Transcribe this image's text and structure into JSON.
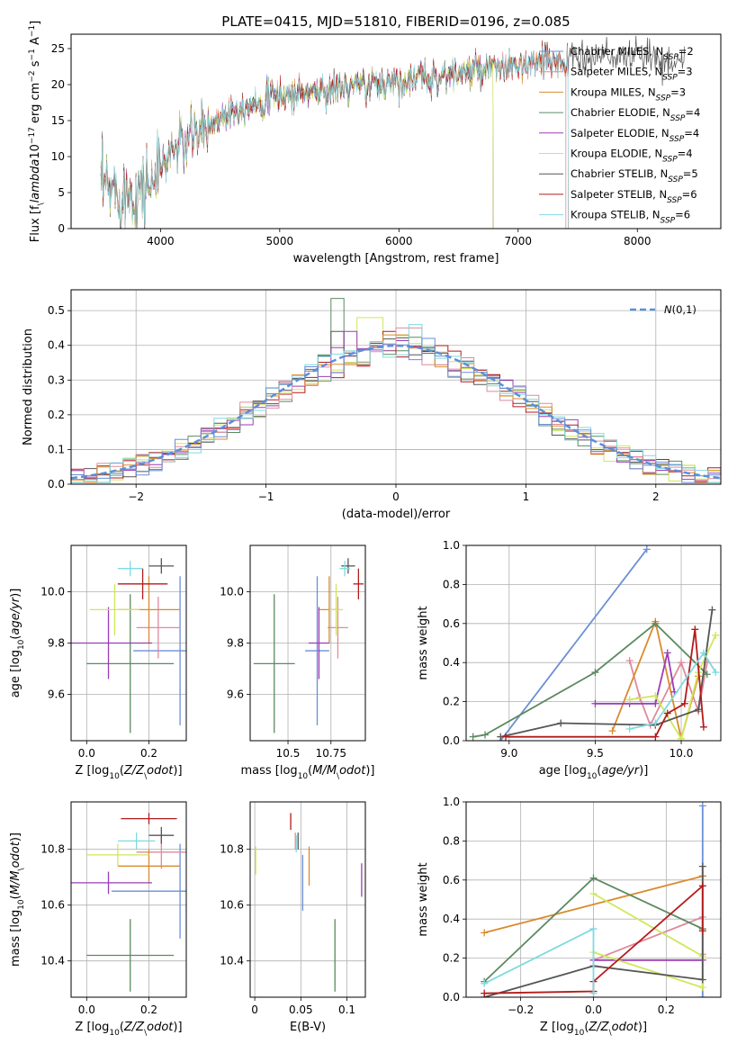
{
  "colors": {
    "palette": [
      "#6a8fd6",
      "#e08a9c",
      "#d98a2e",
      "#5c8a60",
      "#9b3db5",
      "#cfe85a",
      "#555555",
      "#b31b1b",
      "#7fd9e0"
    ],
    "gaussian": "#5b8fd9",
    "grid": "#b0b0b0"
  },
  "chart_data": [
    {
      "id": "spectrum",
      "type": "line",
      "title": "PLATE=0415, MJD=51810, FIBERID=0196, z=0.085",
      "xlabel": "wavelength [Angstrom, rest frame]",
      "ylabel": "Flux [f$_\\lambda$10$^{-17}$ erg cm$^{-2}$ s$^{-1}$ A$^{-1}$]",
      "xlim": [
        3250,
        8700
      ],
      "ylim": [
        0,
        27
      ],
      "xticks": [
        4000,
        5000,
        6000,
        7000,
        8000
      ],
      "yticks": [
        0,
        5,
        10,
        15,
        20,
        25
      ],
      "grid": false,
      "legend_position": "top-right",
      "continuum_knots": {
        "x": [
          3500,
          3800,
          3950,
          4100,
          4300,
          4600,
          5000,
          5500,
          6000,
          6500,
          7000,
          7400,
          7800,
          8200,
          8400
        ],
        "y": [
          5.5,
          5,
          7,
          11,
          13,
          16.5,
          18.5,
          19.5,
          20.5,
          21.5,
          22.5,
          23.5,
          24,
          23.5,
          23
        ]
      },
      "series": [
        {
          "label_main": "Chabrier MILES, N",
          "label_sub": "SSP",
          "label_tail": "=2",
          "color": "#6a8fd6",
          "xmax": 7400
        },
        {
          "label_main": "Salpeter MILES, N",
          "label_sub": "SSP",
          "label_tail": "=3",
          "color": "#e08a9c",
          "xmax": 7400
        },
        {
          "label_main": "Kroupa MILES, N",
          "label_sub": "SSP",
          "label_tail": "=3",
          "color": "#d98a2e",
          "xmax": 7400
        },
        {
          "label_main": "Chabrier ELODIE, N",
          "label_sub": "SSP",
          "label_tail": "=4",
          "color": "#5c8a60",
          "xmax": 6790
        },
        {
          "label_main": "Salpeter ELODIE, N",
          "label_sub": "SSP",
          "label_tail": "=4",
          "color": "#9b3db5",
          "xmax": 6790
        },
        {
          "label_main": "Kroupa ELODIE, N",
          "label_sub": "SSP",
          "label_tail": "=4",
          "color": "#cfe85a",
          "xmax": 6790
        },
        {
          "label_main": "Chabrier STELIB, N",
          "label_sub": "SSP",
          "label_tail": "=5",
          "color": "#555555",
          "xmax": 8400
        },
        {
          "label_main": "Salpeter STELIB, N",
          "label_sub": "SSP",
          "label_tail": "=6",
          "color": "#b31b1b",
          "xmax": 7420
        },
        {
          "label_main": "Kroupa STELIB, N",
          "label_sub": "SSP",
          "label_tail": "=6",
          "color": "#7fd9e0",
          "xmax": 7420
        }
      ]
    },
    {
      "id": "residuals",
      "type": "histogram",
      "xlabel": "(data-model)/error",
      "ylabel": "Normed distribution",
      "xlim": [
        -2.5,
        2.5
      ],
      "ylim": [
        0,
        0.56
      ],
      "xticks": [
        -2,
        -1,
        0,
        1,
        2
      ],
      "yticks": [
        0.0,
        0.1,
        0.2,
        0.3,
        0.4,
        0.5
      ],
      "grid": true,
      "legend_position": "top-right",
      "gaussian_label": "$\\mathcal{N}(0,1)$",
      "bin_width": 0.1,
      "series": [
        {
          "color": "#5c8a60",
          "peak": {
            "x": -0.45,
            "y": 0.535
          }
        },
        {
          "color": "#cfe85a",
          "peak": {
            "x": -0.2,
            "y": 0.48
          }
        },
        {
          "color": "#555555",
          "peak": {
            "x": -0.45,
            "y": 0.44
          }
        },
        {
          "color": "#9b3db5",
          "peak": {
            "x": -0.35,
            "y": 0.44
          }
        },
        {
          "color": "#b31b1b",
          "peak": {
            "x": -0.05,
            "y": 0.44
          }
        },
        {
          "color": "#e08a9c",
          "peak": {
            "x": 0.1,
            "y": 0.45
          }
        },
        {
          "color": "#d98a2e",
          "peak": {
            "x": 0.0,
            "y": 0.43
          }
        },
        {
          "color": "#7fd9e0",
          "peak": {
            "x": 0.15,
            "y": 0.46
          }
        },
        {
          "color": "#6a8fd6",
          "peak": {
            "x": 0.25,
            "y": 0.42
          }
        }
      ]
    },
    {
      "id": "age-vs-z",
      "type": "errorbar",
      "xlabel": "Z [log$_{10}$($Z/Z_\\odot$)]",
      "ylabel": "age  [log$_{10}$($age/yr$)]",
      "xlim": [
        -0.05,
        0.32
      ],
      "ylim": [
        9.42,
        10.18
      ],
      "xticks": [
        0.0,
        0.2
      ],
      "yticks": [
        9.6,
        9.8,
        10.0
      ],
      "grid": true,
      "points": [
        {
          "color": "#6a8fd6",
          "x": 0.3,
          "xerr": 0.15,
          "y": 9.77,
          "yerr": 0.29
        },
        {
          "color": "#e08a9c",
          "x": 0.23,
          "xerr": 0.07,
          "y": 9.86,
          "yerr": 0.12
        },
        {
          "color": "#d98a2e",
          "x": 0.2,
          "xerr": 0.1,
          "y": 9.93,
          "yerr": 0.13
        },
        {
          "color": "#5c8a60",
          "x": 0.14,
          "xerr": 0.14,
          "y": 9.72,
          "yerr": 0.27
        },
        {
          "color": "#9b3db5",
          "x": 0.07,
          "xerr": 0.14,
          "y": 9.8,
          "yerr": 0.14
        },
        {
          "color": "#cfe85a",
          "x": 0.09,
          "xerr": 0.08,
          "y": 9.93,
          "yerr": 0.1
        },
        {
          "color": "#555555",
          "x": 0.24,
          "xerr": 0.04,
          "y": 10.1,
          "yerr": 0.03
        },
        {
          "color": "#b31b1b",
          "x": 0.18,
          "xerr": 0.08,
          "y": 10.03,
          "yerr": 0.06
        },
        {
          "color": "#7fd9e0",
          "x": 0.14,
          "xerr": 0.04,
          "y": 10.09,
          "yerr": 0.03
        }
      ]
    },
    {
      "id": "age-vs-mass",
      "type": "errorbar",
      "xlabel": "mass [log$_{10}$($M/M_\\odot$)]",
      "ylabel": "",
      "xlim": [
        10.28,
        10.95
      ],
      "ylim": [
        9.42,
        10.18
      ],
      "xticks": [
        10.5,
        10.75
      ],
      "yticks": [
        9.6,
        9.8,
        10.0
      ],
      "grid": true,
      "points": [
        {
          "color": "#6a8fd6",
          "x": 10.67,
          "xerr": 0.07,
          "y": 9.77,
          "yerr": 0.29
        },
        {
          "color": "#e08a9c",
          "x": 10.79,
          "xerr": 0.06,
          "y": 9.86,
          "yerr": 0.12
        },
        {
          "color": "#d98a2e",
          "x": 10.74,
          "xerr": 0.06,
          "y": 9.93,
          "yerr": 0.13
        },
        {
          "color": "#5c8a60",
          "x": 10.42,
          "xerr": 0.12,
          "y": 9.72,
          "yerr": 0.27
        },
        {
          "color": "#9b3db5",
          "x": 10.68,
          "xerr": 0.06,
          "y": 9.8,
          "yerr": 0.14
        },
        {
          "color": "#cfe85a",
          "x": 10.78,
          "xerr": 0.04,
          "y": 9.93,
          "yerr": 0.1
        },
        {
          "color": "#555555",
          "x": 10.85,
          "xerr": 0.04,
          "y": 10.1,
          "yerr": 0.03
        },
        {
          "color": "#b31b1b",
          "x": 10.91,
          "xerr": 0.03,
          "y": 10.03,
          "yerr": 0.06
        },
        {
          "color": "#7fd9e0",
          "x": 10.83,
          "xerr": 0.03,
          "y": 10.09,
          "yerr": 0.03
        }
      ]
    },
    {
      "id": "weight-vs-age",
      "type": "line",
      "xlabel": "age  [log$_{10}$($age/yr$)]",
      "ylabel": "mass weight",
      "xlim": [
        8.75,
        10.23
      ],
      "ylim": [
        0.0,
        1.0
      ],
      "xticks": [
        9.0,
        9.5,
        10.0
      ],
      "yticks": [
        0.0,
        0.2,
        0.4,
        0.6,
        0.8,
        1.0
      ],
      "grid": true,
      "series": [
        {
          "color": "#6a8fd6",
          "x": [
            8.95,
            9.8
          ],
          "y": [
            0.0,
            0.98
          ]
        },
        {
          "color": "#e08a9c",
          "x": [
            9.7,
            9.76,
            9.82,
            10.0,
            10.1,
            10.15
          ],
          "y": [
            0.41,
            0.22,
            0.08,
            0.4,
            0.15,
            0.4
          ]
        },
        {
          "color": "#d98a2e",
          "x": [
            9.6,
            9.85,
            10.0,
            10.1
          ],
          "y": [
            0.05,
            0.61,
            0.01,
            0.33
          ]
        },
        {
          "color": "#5c8a60",
          "x": [
            8.79,
            8.86,
            9.5,
            9.85,
            10.15
          ],
          "y": [
            0.02,
            0.03,
            0.35,
            0.6,
            0.34
          ]
        },
        {
          "color": "#9b3db5",
          "x": [
            9.5,
            9.7,
            9.85,
            9.92,
            9.96
          ],
          "y": [
            0.19,
            0.19,
            0.19,
            0.45,
            0.25
          ]
        },
        {
          "color": "#cfe85a",
          "x": [
            9.7,
            9.85,
            10.0,
            10.1,
            10.2
          ],
          "y": [
            0.21,
            0.23,
            0.01,
            0.35,
            0.54
          ]
        },
        {
          "color": "#555555",
          "x": [
            8.95,
            9.3,
            9.85,
            10.1,
            10.18
          ],
          "y": [
            0.02,
            0.09,
            0.08,
            0.16,
            0.67
          ]
        },
        {
          "color": "#b31b1b",
          "x": [
            8.98,
            9.85,
            9.92,
            10.02,
            10.08,
            10.13
          ],
          "y": [
            0.02,
            0.02,
            0.14,
            0.19,
            0.57,
            0.07
          ]
        },
        {
          "color": "#7fd9e0",
          "x": [
            9.7,
            9.85,
            10.13,
            10.2
          ],
          "y": [
            0.06,
            0.09,
            0.45,
            0.35
          ]
        }
      ]
    },
    {
      "id": "mass-vs-z",
      "type": "errorbar",
      "xlabel": "Z [log$_{10}$($Z/Z_\\odot$)]",
      "ylabel": "mass [log$_{10}$($M/M_\\odot$)]",
      "xlim": [
        -0.05,
        0.32
      ],
      "ylim": [
        10.27,
        10.97
      ],
      "xticks": [
        0.0,
        0.2
      ],
      "yticks": [
        10.4,
        10.6,
        10.8
      ],
      "grid": true,
      "points": [
        {
          "color": "#6a8fd6",
          "x": 0.3,
          "xerr": 0.22,
          "y": 10.65,
          "yerr": 0.17
        },
        {
          "color": "#e08a9c",
          "x": 0.24,
          "xerr": 0.08,
          "y": 10.79,
          "yerr": 0.06
        },
        {
          "color": "#d98a2e",
          "x": 0.2,
          "xerr": 0.1,
          "y": 10.74,
          "yerr": 0.06
        },
        {
          "color": "#5c8a60",
          "x": 0.14,
          "xerr": 0.14,
          "y": 10.42,
          "yerr": 0.13
        },
        {
          "color": "#9b3db5",
          "x": 0.07,
          "xerr": 0.14,
          "y": 10.68,
          "yerr": 0.04
        },
        {
          "color": "#cfe85a",
          "x": 0.1,
          "xerr": 0.1,
          "y": 10.78,
          "yerr": 0.04
        },
        {
          "color": "#555555",
          "x": 0.24,
          "xerr": 0.04,
          "y": 10.85,
          "yerr": 0.03
        },
        {
          "color": "#b31b1b",
          "x": 0.2,
          "xerr": 0.09,
          "y": 10.91,
          "yerr": 0.02
        },
        {
          "color": "#7fd9e0",
          "x": 0.16,
          "xerr": 0.06,
          "y": 10.83,
          "yerr": 0.03
        }
      ]
    },
    {
      "id": "mass-vs-ebv",
      "type": "errorbar",
      "xlabel": "E(B-V)",
      "ylabel": "",
      "xlim": [
        -0.005,
        0.12
      ],
      "ylim": [
        10.27,
        10.97
      ],
      "xticks": [
        0.0,
        0.05,
        0.1
      ],
      "yticks": [
        10.4,
        10.6,
        10.8
      ],
      "grid": true,
      "points": [
        {
          "color": "#6a8fd6",
          "x": 0.052,
          "xerr": 0,
          "y": 10.68,
          "yerr": 0.1
        },
        {
          "color": "#e08a9c",
          "x": 0.044,
          "xerr": 0,
          "y": 10.83,
          "yerr": 0.03
        },
        {
          "color": "#d98a2e",
          "x": 0.059,
          "xerr": 0,
          "y": 10.74,
          "yerr": 0.07
        },
        {
          "color": "#5c8a60",
          "x": 0.087,
          "xerr": 0,
          "y": 10.42,
          "yerr": 0.13
        },
        {
          "color": "#9b3db5",
          "x": 0.116,
          "xerr": 0,
          "y": 10.69,
          "yerr": 0.06
        },
        {
          "color": "#cfe85a",
          "x": 0.001,
          "xerr": 0,
          "y": 10.76,
          "yerr": 0.05
        },
        {
          "color": "#555555",
          "x": 0.047,
          "xerr": 0,
          "y": 10.83,
          "yerr": 0.03
        },
        {
          "color": "#b31b1b",
          "x": 0.039,
          "xerr": 0,
          "y": 10.9,
          "yerr": 0.03
        },
        {
          "color": "#7fd9e0",
          "x": 0.045,
          "xerr": 0,
          "y": 10.82,
          "yerr": 0.03
        }
      ]
    },
    {
      "id": "weight-vs-z",
      "type": "line",
      "xlabel": "Z [log$_{10}$($Z/Z_\\odot$)]",
      "ylabel": "mass weight",
      "xlim": [
        -0.35,
        0.35
      ],
      "ylim": [
        0.0,
        1.0
      ],
      "xticks": [
        -0.2,
        0.0,
        0.2
      ],
      "yticks": [
        0.0,
        0.2,
        0.4,
        0.6,
        0.8,
        1.0
      ],
      "grid": true,
      "series": [
        {
          "color": "#6a8fd6",
          "x": [
            0.3,
            0.3,
            0.3
          ],
          "y": [
            0.0,
            0.98,
            0.62
          ]
        },
        {
          "color": "#e08a9c",
          "x": [
            0.0,
            0.3,
            0.3
          ],
          "y": [
            0.19,
            0.41,
            0.22
          ]
        },
        {
          "color": "#d98a2e",
          "x": [
            -0.3,
            0.3
          ],
          "y": [
            0.33,
            0.62
          ]
        },
        {
          "color": "#5c8a60",
          "x": [
            -0.3,
            0.0,
            0.3
          ],
          "y": [
            0.08,
            0.61,
            0.35
          ]
        },
        {
          "color": "#9b3db5",
          "x": [
            0.0,
            0.3
          ],
          "y": [
            0.19,
            0.19
          ]
        },
        {
          "color": "#cfe85a",
          "x": [
            0.0,
            0.3,
            0.3,
            0.0
          ],
          "y": [
            0.53,
            0.21,
            0.05,
            0.23
          ]
        },
        {
          "color": "#555555",
          "x": [
            -0.3,
            0.0,
            0.3,
            0.3
          ],
          "y": [
            0.0,
            0.16,
            0.09,
            0.67
          ]
        },
        {
          "color": "#b31b1b",
          "x": [
            -0.3,
            0.0,
            0.0,
            0.3,
            0.3
          ],
          "y": [
            0.02,
            0.03,
            0.08,
            0.57,
            0.34
          ]
        },
        {
          "color": "#7fd9e0",
          "x": [
            -0.3,
            0.0,
            0.0
          ],
          "y": [
            0.07,
            0.35,
            0.02
          ]
        }
      ]
    }
  ]
}
